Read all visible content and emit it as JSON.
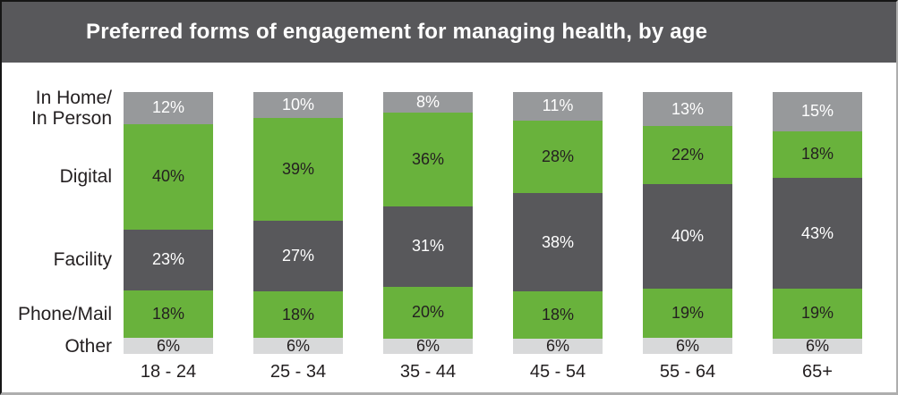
{
  "title": "Preferred forms of engagement for managing health, by age",
  "colors": {
    "header_bg": "#58585B",
    "title_text": "#FFFFFF",
    "green": "#69B23C",
    "dark_gray": "#58585B",
    "medium_gray": "#97999B",
    "light_gray": "#D8D9DA",
    "label_dark": "#231F20",
    "label_light": "#FFFFFF"
  },
  "chart_data": {
    "type": "bar",
    "stacked": true,
    "percent_total": 100,
    "unit": "%",
    "title": "Preferred forms of engagement for managing health, by age",
    "categories": [
      "18 - 24",
      "25 - 34",
      "35 - 44",
      "45 - 54",
      "55 - 64",
      "65+"
    ],
    "row_labels": [
      "In Home/\nIn Person",
      "Digital",
      "Facility",
      "Phone/Mail",
      "Other"
    ],
    "legend_position": "left-row-labels",
    "grid": false,
    "series": [
      {
        "name": "In Home/In Person",
        "color_key": "medium_gray",
        "text_color_key": "label_light",
        "values": [
          12,
          10,
          8,
          11,
          13,
          15
        ]
      },
      {
        "name": "Digital",
        "color_key": "green",
        "text_color_key": "label_dark",
        "values": [
          40,
          39,
          36,
          28,
          22,
          18
        ]
      },
      {
        "name": "Facility",
        "color_key": "dark_gray",
        "text_color_key": "label_light",
        "values": [
          23,
          27,
          31,
          38,
          40,
          43
        ]
      },
      {
        "name": "Phone/Mail",
        "color_key": "green",
        "text_color_key": "label_dark",
        "values": [
          18,
          18,
          20,
          18,
          19,
          19
        ]
      },
      {
        "name": "Other",
        "color_key": "light_gray",
        "text_color_key": "label_dark",
        "values": [
          6,
          6,
          6,
          6,
          6,
          6
        ]
      }
    ]
  }
}
